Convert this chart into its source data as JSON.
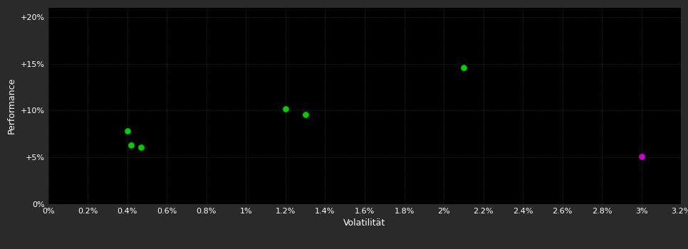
{
  "background_color": "#2a2a2a",
  "plot_bg_color": "#000000",
  "grid_color": "#444444",
  "text_color": "#ffffff",
  "xlabel": "Volatilität",
  "ylabel": "Performance",
  "xlim": [
    0,
    0.032
  ],
  "ylim": [
    0,
    0.21
  ],
  "xticks": [
    0.0,
    0.002,
    0.004,
    0.006,
    0.008,
    0.01,
    0.012,
    0.014,
    0.016,
    0.018,
    0.02,
    0.022,
    0.024,
    0.026,
    0.028,
    0.03,
    0.032
  ],
  "yticks": [
    0.0,
    0.05,
    0.1,
    0.15,
    0.2
  ],
  "green_points": [
    [
      0.004,
      0.078
    ],
    [
      0.0042,
      0.063
    ],
    [
      0.0047,
      0.061
    ],
    [
      0.012,
      0.102
    ],
    [
      0.013,
      0.096
    ],
    [
      0.021,
      0.146
    ]
  ],
  "magenta_points": [
    [
      0.03,
      0.051
    ]
  ],
  "green_color": "#00cc00",
  "magenta_color": "#cc00cc",
  "marker_size": 40,
  "font_size_label": 9,
  "font_size_tick": 8
}
